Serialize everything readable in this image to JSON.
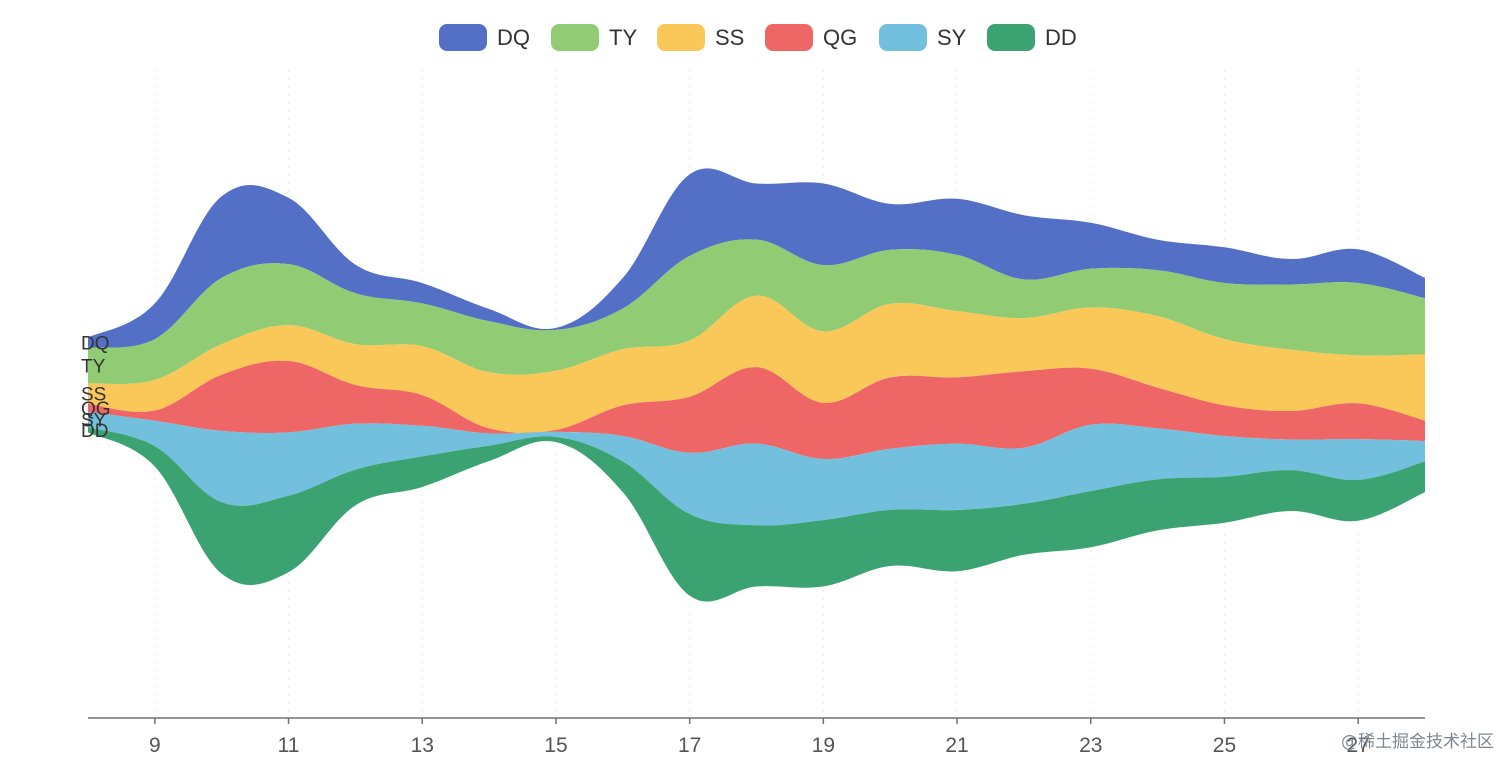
{
  "chart_data": {
    "type": "area",
    "subtype": "themeriver",
    "title": "",
    "xlabel": "",
    "ylabel": "",
    "x": [
      8,
      9,
      10,
      11,
      12,
      13,
      14,
      15,
      16,
      17,
      18,
      19,
      20,
      21,
      22,
      23,
      24,
      25,
      26,
      27,
      28
    ],
    "xlim": [
      8,
      28
    ],
    "x_ticks": [
      "9",
      "11",
      "13",
      "15",
      "17",
      "19",
      "21",
      "23",
      "25",
      "27"
    ],
    "legend_position": "top-center",
    "grid": false,
    "series": [
      {
        "name": "DQ",
        "color": "#5470c6",
        "values": [
          10,
          35,
          80,
          65,
          28,
          20,
          12,
          2,
          30,
          80,
          55,
          80,
          45,
          55,
          63,
          45,
          30,
          35,
          25,
          33,
          20
        ]
      },
      {
        "name": "TY",
        "color": "#91cc75",
        "values": [
          35,
          40,
          65,
          60,
          50,
          42,
          50,
          40,
          40,
          83,
          55,
          65,
          53,
          55,
          38,
          38,
          45,
          55,
          64,
          71,
          55
        ]
      },
      {
        "name": "SS",
        "color": "#fac858",
        "values": [
          20,
          30,
          30,
          35,
          40,
          48,
          55,
          58,
          55,
          55,
          70,
          70,
          72,
          65,
          52,
          60,
          70,
          65,
          60,
          47,
          65
        ]
      },
      {
        "name": "QG",
        "color": "#ee6666",
        "values": [
          8,
          10,
          55,
          70,
          38,
          30,
          5,
          2,
          30,
          55,
          75,
          55,
          70,
          65,
          75,
          55,
          40,
          30,
          28,
          35,
          20
        ]
      },
      {
        "name": "SY",
        "color": "#73c0de",
        "values": [
          15,
          25,
          70,
          62,
          45,
          30,
          12,
          5,
          25,
          60,
          80,
          60,
          60,
          65,
          55,
          65,
          50,
          40,
          30,
          40,
          20
        ]
      },
      {
        "name": "DD",
        "color": "#3ba272",
        "values": [
          5,
          20,
          70,
          75,
          35,
          30,
          15,
          5,
          30,
          80,
          60,
          65,
          55,
          60,
          50,
          55,
          50,
          45,
          40,
          40,
          30
        ]
      }
    ]
  },
  "legend": {
    "items": [
      {
        "label": "DQ",
        "color": "#5470c6"
      },
      {
        "label": "TY",
        "color": "#91cc75"
      },
      {
        "label": "SS",
        "color": "#fac858"
      },
      {
        "label": "QG",
        "color": "#ee6666"
      },
      {
        "label": "SY",
        "color": "#73c0de"
      },
      {
        "label": "DD",
        "color": "#3ba272"
      }
    ]
  },
  "watermark": {
    "text": "@稀土掘金技术社区"
  }
}
